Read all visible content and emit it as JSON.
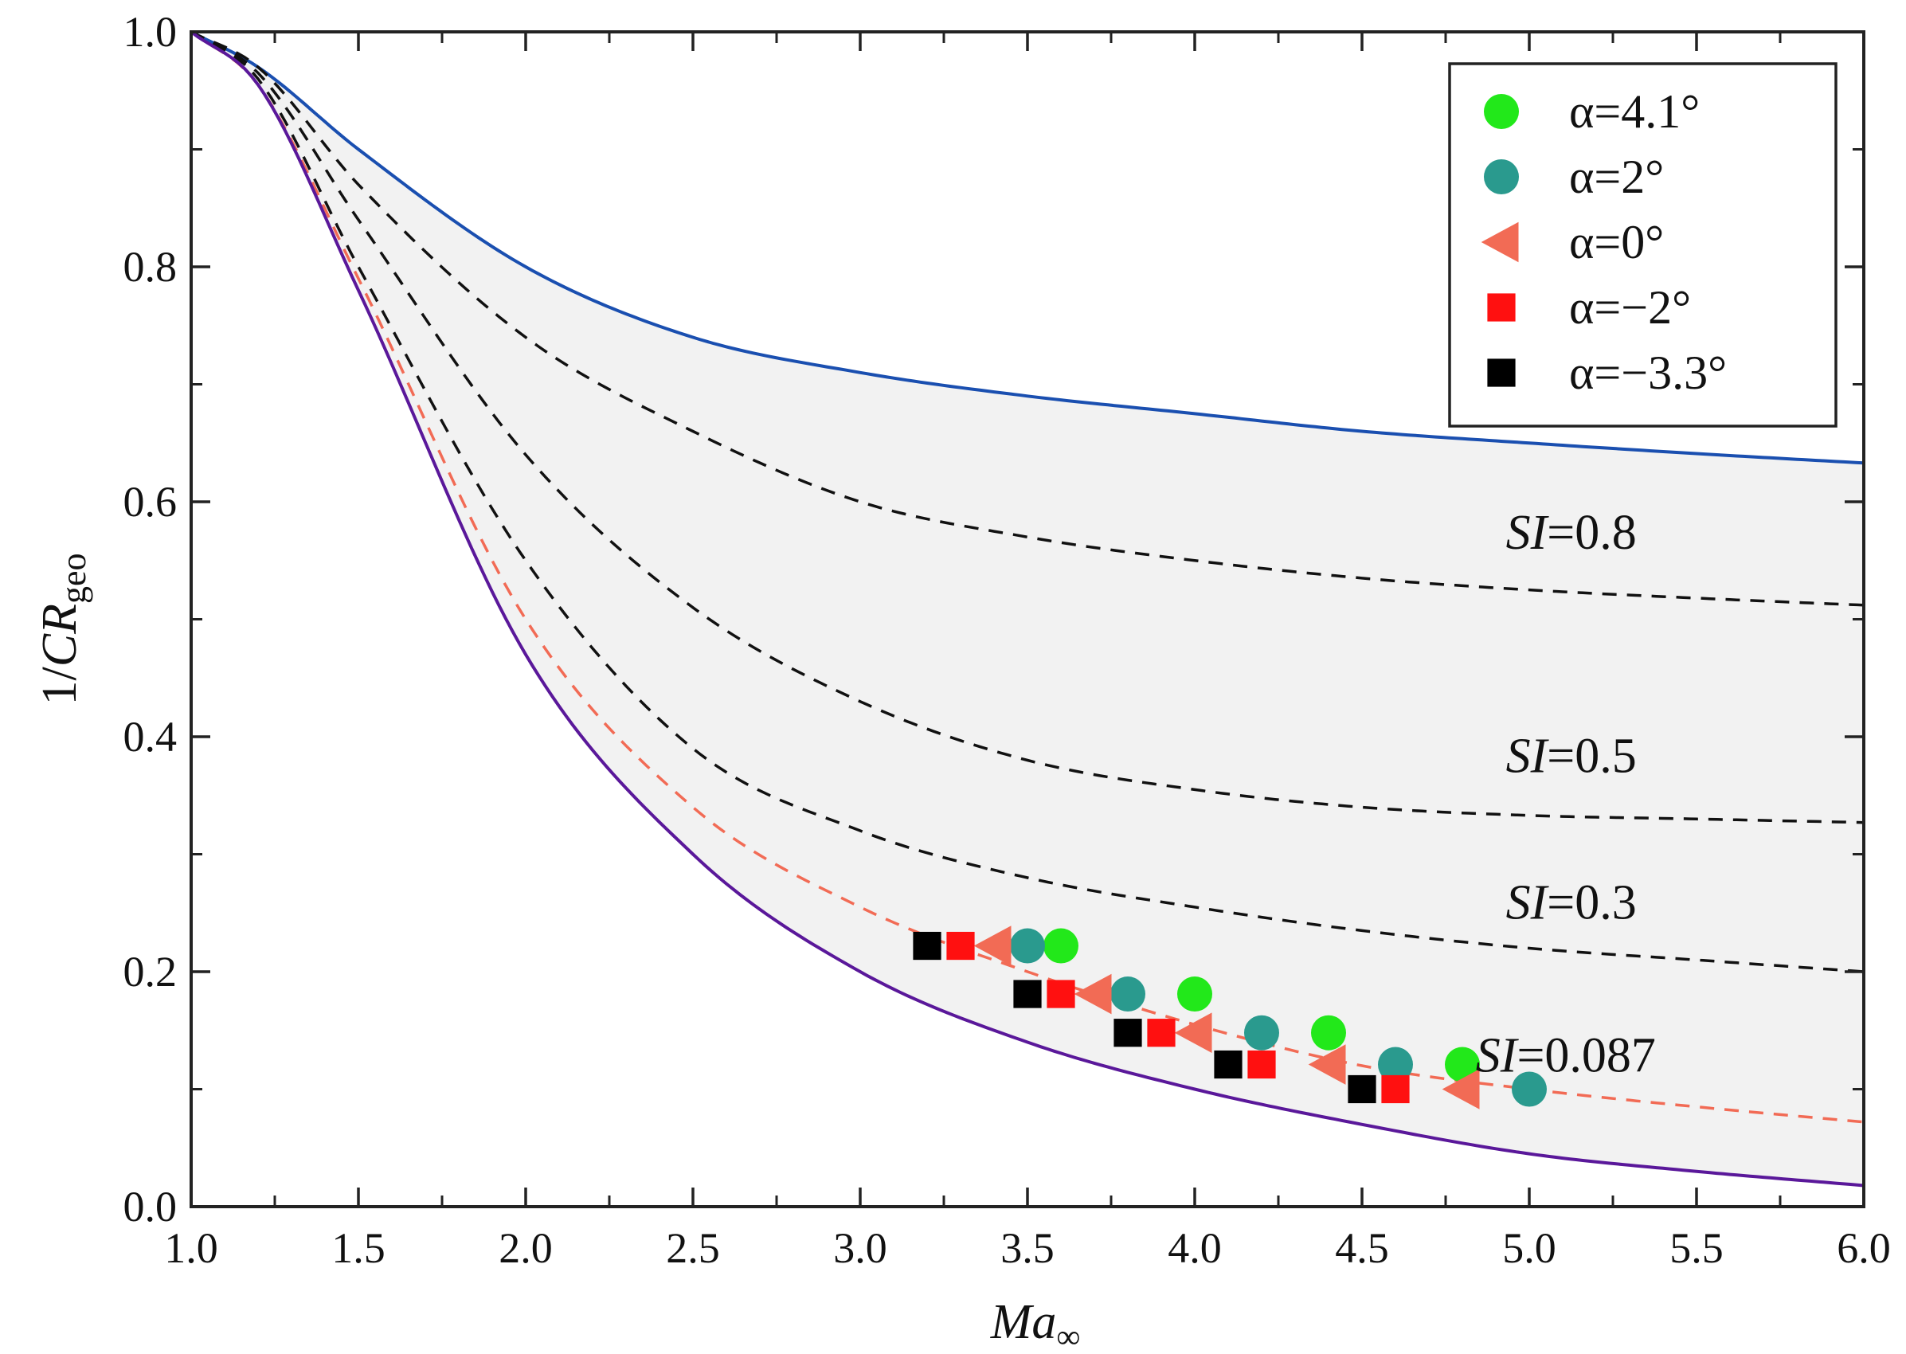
{
  "chart_data": {
    "type": "line",
    "title": "",
    "xlabel_main": "Ma",
    "xlabel_sub": "∞",
    "ylabel_prefix": "1/",
    "ylabel_main": "CR",
    "ylabel_sub": "geo",
    "xlim": [
      1.0,
      6.0
    ],
    "ylim": [
      0.0,
      1.0
    ],
    "xticks": [
      1.0,
      1.5,
      2.0,
      2.5,
      3.0,
      3.5,
      4.0,
      4.5,
      5.0,
      5.5,
      6.0
    ],
    "xtick_labels": [
      "1.0",
      "1.5",
      "2.0",
      "2.5",
      "3.0",
      "3.5",
      "4.0",
      "4.5",
      "5.0",
      "5.5",
      "6.0"
    ],
    "yticks": [
      0.0,
      0.2,
      0.4,
      0.6,
      0.8,
      1.0
    ],
    "ytick_labels": [
      "0.0",
      "0.2",
      "0.4",
      "0.6",
      "0.8",
      "1.0"
    ],
    "grid": false,
    "shaded_region": "between upper blue curve and lower purple curve",
    "curves": [
      {
        "name": "upper-bound",
        "color": "#1a4fb0",
        "style": "solid",
        "x": [
          1.0,
          1.2,
          1.5,
          2.0,
          2.5,
          3.0,
          3.5,
          4.0,
          4.5,
          5.0,
          5.5,
          6.0
        ],
        "y": [
          1.0,
          0.97,
          0.9,
          0.8,
          0.74,
          0.71,
          0.69,
          0.675,
          0.66,
          0.65,
          0.641,
          0.633
        ]
      },
      {
        "name": "SI=0.8",
        "color": "#111111",
        "style": "dashed",
        "x": [
          1.0,
          1.2,
          1.5,
          2.0,
          2.5,
          3.0,
          3.5,
          4.0,
          4.5,
          5.0,
          5.5,
          6.0
        ],
        "y": [
          1.0,
          0.97,
          0.87,
          0.74,
          0.66,
          0.6,
          0.57,
          0.55,
          0.535,
          0.525,
          0.518,
          0.512
        ]
      },
      {
        "name": "SI=0.5",
        "color": "#111111",
        "style": "dashed",
        "x": [
          1.0,
          1.2,
          1.5,
          2.0,
          2.5,
          3.0,
          3.5,
          4.0,
          4.5,
          5.0,
          5.5,
          6.0
        ],
        "y": [
          1.0,
          0.965,
          0.84,
          0.64,
          0.51,
          0.43,
          0.38,
          0.355,
          0.34,
          0.333,
          0.33,
          0.327
        ]
      },
      {
        "name": "SI=0.3",
        "color": "#111111",
        "style": "dashed",
        "x": [
          1.0,
          1.2,
          1.5,
          2.0,
          2.5,
          3.0,
          3.5,
          4.0,
          4.5,
          5.0,
          5.5,
          6.0
        ],
        "y": [
          1.0,
          0.96,
          0.8,
          0.55,
          0.39,
          0.32,
          0.28,
          0.255,
          0.235,
          0.22,
          0.21,
          0.2
        ]
      },
      {
        "name": "SI=0.087",
        "color": "#f26b55",
        "style": "dashed",
        "x": [
          1.0,
          1.2,
          1.5,
          2.0,
          2.5,
          3.0,
          3.5,
          4.0,
          4.5,
          5.0,
          5.5,
          6.0
        ],
        "y": [
          1.0,
          0.955,
          0.79,
          0.5,
          0.34,
          0.255,
          0.2,
          0.155,
          0.12,
          0.1,
          0.085,
          0.072
        ]
      },
      {
        "name": "lower-bound",
        "color": "#5a189a",
        "style": "solid",
        "x": [
          1.0,
          1.2,
          1.5,
          2.0,
          2.5,
          3.0,
          3.5,
          4.0,
          4.5,
          5.0,
          5.5,
          6.0
        ],
        "y": [
          1.0,
          0.955,
          0.78,
          0.47,
          0.3,
          0.2,
          0.14,
          0.1,
          0.07,
          0.045,
          0.03,
          0.018
        ]
      }
    ],
    "annotations": [
      {
        "label_italic": "SI",
        "label_rest": "=0.8",
        "x": 4.93,
        "y": 0.56
      },
      {
        "label_italic": "SI",
        "label_rest": "=0.5",
        "x": 4.93,
        "y": 0.37
      },
      {
        "label_italic": "SI",
        "label_rest": "=0.3",
        "x": 4.93,
        "y": 0.245
      },
      {
        "label_italic": "SI",
        "label_rest": "=0.087",
        "x": 4.84,
        "y": 0.115
      }
    ],
    "series": [
      {
        "name": "α=4.1°",
        "marker": "circle",
        "color": "#22e81a",
        "x": [
          3.6,
          4.0,
          4.4,
          4.8
        ],
        "y": [
          0.222,
          0.181,
          0.148,
          0.121
        ]
      },
      {
        "name": "α=2°",
        "marker": "circle",
        "color": "#2a9a8e",
        "x": [
          3.5,
          3.8,
          4.2,
          4.6,
          5.0
        ],
        "y": [
          0.222,
          0.181,
          0.148,
          0.121,
          0.1
        ]
      },
      {
        "name": "α=0°",
        "marker": "triangle-left",
        "color": "#f26b55",
        "x": [
          3.4,
          3.7,
          4.0,
          4.4,
          4.8
        ],
        "y": [
          0.222,
          0.181,
          0.148,
          0.121,
          0.1
        ]
      },
      {
        "name": "α=−2°",
        "marker": "square",
        "color": "#ff1010",
        "x": [
          3.3,
          3.6,
          3.9,
          4.2,
          4.6
        ],
        "y": [
          0.222,
          0.181,
          0.148,
          0.121,
          0.1
        ]
      },
      {
        "name": "α=−3.3°",
        "marker": "square",
        "color": "#000000",
        "x": [
          3.2,
          3.5,
          3.8,
          4.1,
          4.5
        ],
        "y": [
          0.222,
          0.181,
          0.148,
          0.121,
          0.1
        ]
      }
    ],
    "legend": {
      "placement": "top-right",
      "entries": [
        "α=4.1°",
        "α=2°",
        "α=0°",
        "α=−2°",
        "α=−3.3°"
      ]
    }
  }
}
